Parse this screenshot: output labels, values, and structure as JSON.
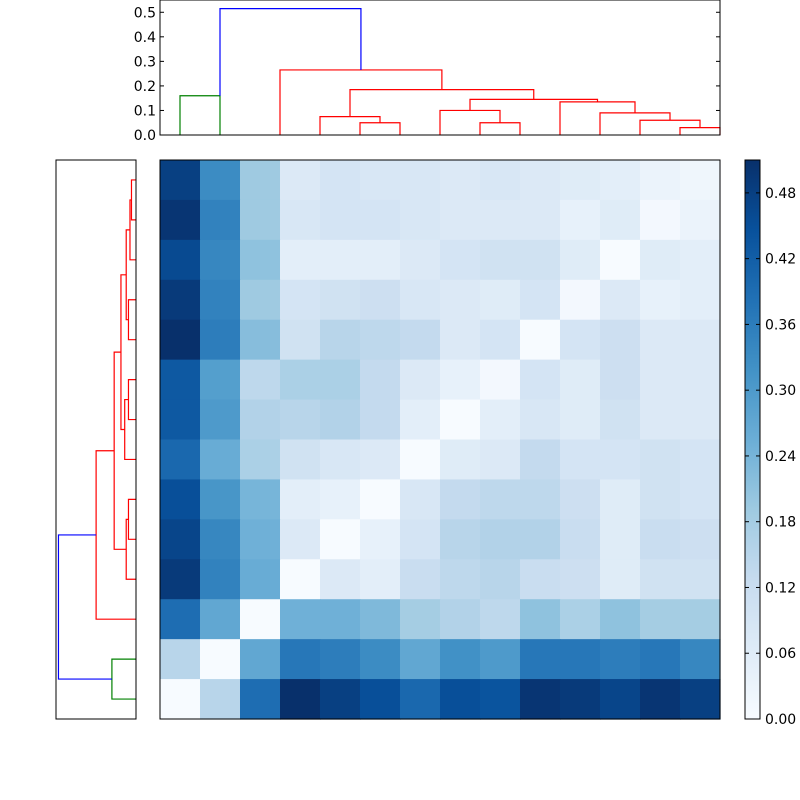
{
  "chart_data": {
    "type": "heatmap",
    "title": "",
    "n": 14,
    "matrix": [
      [
        0.48,
        0.33,
        0.19,
        0.07,
        0.09,
        0.08,
        0.08,
        0.07,
        0.08,
        0.07,
        0.06,
        0.05,
        0.03,
        0.02
      ],
      [
        0.5,
        0.35,
        0.19,
        0.08,
        0.09,
        0.09,
        0.08,
        0.07,
        0.07,
        0.07,
        0.04,
        0.06,
        0.01,
        0.03
      ],
      [
        0.46,
        0.34,
        0.21,
        0.05,
        0.05,
        0.05,
        0.07,
        0.09,
        0.1,
        0.1,
        0.06,
        0.0,
        0.06,
        0.05
      ],
      [
        0.49,
        0.35,
        0.19,
        0.09,
        0.1,
        0.11,
        0.08,
        0.07,
        0.06,
        0.09,
        0.01,
        0.07,
        0.04,
        0.05
      ],
      [
        0.51,
        0.36,
        0.22,
        0.1,
        0.15,
        0.14,
        0.13,
        0.07,
        0.09,
        0.0,
        0.09,
        0.11,
        0.07,
        0.07
      ],
      [
        0.43,
        0.29,
        0.14,
        0.17,
        0.17,
        0.13,
        0.07,
        0.04,
        0.01,
        0.09,
        0.06,
        0.11,
        0.07,
        0.07
      ],
      [
        0.43,
        0.3,
        0.16,
        0.15,
        0.16,
        0.13,
        0.05,
        0.0,
        0.05,
        0.08,
        0.06,
        0.1,
        0.07,
        0.07
      ],
      [
        0.4,
        0.26,
        0.17,
        0.1,
        0.08,
        0.07,
        0.0,
        0.06,
        0.07,
        0.13,
        0.09,
        0.09,
        0.1,
        0.09
      ],
      [
        0.45,
        0.31,
        0.24,
        0.05,
        0.04,
        0.0,
        0.08,
        0.13,
        0.14,
        0.14,
        0.11,
        0.06,
        0.1,
        0.09
      ],
      [
        0.47,
        0.34,
        0.25,
        0.07,
        0.0,
        0.04,
        0.09,
        0.15,
        0.16,
        0.16,
        0.12,
        0.06,
        0.12,
        0.11
      ],
      [
        0.49,
        0.35,
        0.26,
        0.0,
        0.07,
        0.05,
        0.12,
        0.14,
        0.15,
        0.12,
        0.11,
        0.06,
        0.1,
        0.1
      ],
      [
        0.39,
        0.27,
        0.0,
        0.25,
        0.25,
        0.23,
        0.18,
        0.16,
        0.14,
        0.21,
        0.17,
        0.21,
        0.18,
        0.18
      ],
      [
        0.15,
        0.0,
        0.27,
        0.37,
        0.36,
        0.33,
        0.27,
        0.32,
        0.3,
        0.37,
        0.37,
        0.36,
        0.37,
        0.34
      ],
      [
        0.0,
        0.15,
        0.39,
        0.51,
        0.48,
        0.45,
        0.4,
        0.45,
        0.44,
        0.5,
        0.49,
        0.47,
        0.5,
        0.48
      ]
    ],
    "colorbar": {
      "range": [
        0.0,
        0.51
      ],
      "ticks": [
        0.0,
        0.06,
        0.12,
        0.18,
        0.24,
        0.3,
        0.36,
        0.42,
        0.48
      ],
      "tick_labels": [
        "0.00",
        "0.06",
        "0.12",
        "0.18",
        "0.24",
        "0.30",
        "0.36",
        "0.42",
        "0.48"
      ],
      "colormap": "Blues"
    },
    "top_dendrogram": {
      "ylim": [
        0.0,
        0.55
      ],
      "ticks": [
        0.0,
        0.1,
        0.2,
        0.3,
        0.4,
        0.5
      ],
      "tick_labels": [
        "0.0",
        "0.1",
        "0.2",
        "0.3",
        "0.4",
        "0.5"
      ],
      "colors": {
        "blue": "#0000ff",
        "green": "#008000",
        "red": "#ff0000"
      },
      "links": [
        {
          "leaves": [
            0,
            1
          ],
          "heights": [
            0.0,
            0.16,
            0.16,
            0.0
          ],
          "color": "green"
        },
        {
          "leaves": [
            4.5,
            5.5
          ],
          "heights": [
            0.0,
            0.05,
            0.05,
            0.0
          ],
          "color": "red"
        },
        {
          "leaves": [
            3.5,
            5.0
          ],
          "heights": [
            0.0,
            0.075,
            0.075,
            0.05
          ],
          "color": "red"
        },
        {
          "leaves": [
            7.5,
            8.5
          ],
          "heights": [
            0.0,
            0.05,
            0.05,
            0.0
          ],
          "color": "red"
        },
        {
          "leaves": [
            6.5,
            8.0
          ],
          "heights": [
            0.0,
            0.1,
            0.1,
            0.05
          ],
          "color": "red"
        },
        {
          "leaves": [
            12.5,
            13.5
          ],
          "heights": [
            0.0,
            0.03,
            0.03,
            0.0
          ],
          "color": "red"
        },
        {
          "leaves": [
            11.5,
            13.0
          ],
          "heights": [
            0.0,
            0.06,
            0.06,
            0.03
          ],
          "color": "red"
        },
        {
          "leaves": [
            10.5,
            12.25
          ],
          "heights": [
            0.0,
            0.09,
            0.09,
            0.06
          ],
          "color": "red"
        },
        {
          "leaves": [
            9.5,
            11.375
          ],
          "heights": [
            0.0,
            0.135,
            0.135,
            0.09
          ],
          "color": "red"
        },
        {
          "leaves": [
            7.25,
            10.4375
          ],
          "heights": [
            0.1,
            0.145,
            0.145,
            0.135
          ],
          "color": "red"
        },
        {
          "leaves": [
            4.25,
            8.84375
          ],
          "heights": [
            0.075,
            0.185,
            0.185,
            0.145
          ],
          "color": "red"
        },
        {
          "leaves": [
            2.5,
            6.546875
          ],
          "heights": [
            0.0,
            0.265,
            0.265,
            0.185
          ],
          "color": "red"
        },
        {
          "leaves": [
            1.0,
            4.5234375
          ],
          "heights": [
            0.16,
            0.515,
            0.515,
            0.265
          ],
          "color": "blue"
        }
      ]
    },
    "left_dendrogram": {
      "colors": {
        "blue": "#0000ff",
        "green": "#008000",
        "red": "#ff0000"
      },
      "links": [
        {
          "leaves": [
            0.5,
            1.5
          ],
          "heights": [
            0.0,
            0.03,
            0.03,
            0.0
          ],
          "color": "red"
        },
        {
          "leaves": [
            2.5,
            1.0
          ],
          "heights": [
            0.0,
            0.04,
            0.04,
            0.03
          ],
          "color": "red"
        },
        {
          "leaves": [
            3.5,
            4.5
          ],
          "heights": [
            0.0,
            0.05,
            0.05,
            0.0
          ],
          "color": "red"
        },
        {
          "leaves": [
            1.75,
            4.0
          ],
          "heights": [
            0.04,
            0.065,
            0.065,
            0.05
          ],
          "color": "red"
        },
        {
          "leaves": [
            5.5,
            6.5
          ],
          "heights": [
            0.0,
            0.05,
            0.05,
            0.0
          ],
          "color": "red"
        },
        {
          "leaves": [
            6.0,
            7.5
          ],
          "heights": [
            0.05,
            0.075,
            0.075,
            0.0
          ],
          "color": "red"
        },
        {
          "leaves": [
            2.875,
            6.75
          ],
          "heights": [
            0.065,
            0.1,
            0.1,
            0.075
          ],
          "color": "red"
        },
        {
          "leaves": [
            8.5,
            9.5
          ],
          "heights": [
            0.0,
            0.05,
            0.05,
            0.0
          ],
          "color": "red"
        },
        {
          "leaves": [
            9.0,
            10.5
          ],
          "heights": [
            0.05,
            0.065,
            0.065,
            0.0
          ],
          "color": "red"
        },
        {
          "leaves": [
            4.8125,
            9.75
          ],
          "heights": [
            0.1,
            0.145,
            0.145,
            0.065
          ],
          "color": "red"
        },
        {
          "leaves": [
            7.28125,
            11.5
          ],
          "heights": [
            0.145,
            0.265,
            0.265,
            0.0
          ],
          "color": "red"
        },
        {
          "leaves": [
            12.5,
            13.5
          ],
          "heights": [
            0.0,
            0.16,
            0.16,
            0.0
          ],
          "color": "green"
        },
        {
          "leaves": [
            9.390625,
            13.0
          ],
          "heights": [
            0.265,
            0.515,
            0.515,
            0.16
          ],
          "color": "blue"
        }
      ]
    }
  }
}
